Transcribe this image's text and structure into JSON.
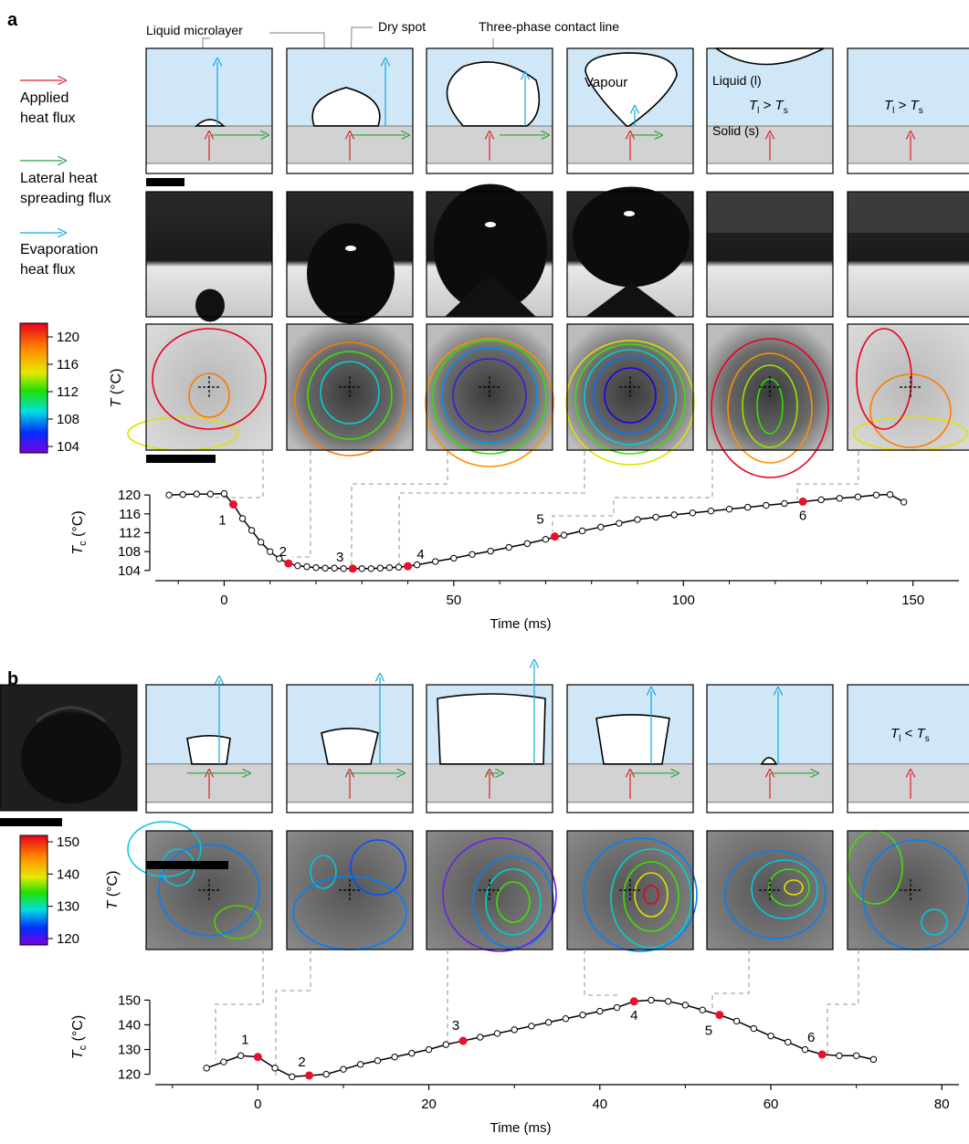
{
  "panel_a": {
    "label": "a",
    "annotations": {
      "microlayer": "Liquid microlayer",
      "dry_spot": "Dry spot",
      "contact_line": "Three-phase contact line"
    },
    "legend": {
      "applied": [
        "Applied",
        "heat flux"
      ],
      "lateral": [
        "Lateral heat",
        "spreading flux"
      ],
      "evaporation": [
        "Evaporation",
        "heat flux"
      ]
    },
    "schematic_text": {
      "vapour": "Vapour",
      "liquid": "Liquid (l)",
      "solid": "Solid (s)",
      "tl_gt_ts": "> ",
      "t_main": "T",
      "sub_l": "l",
      "sub_s": "s"
    },
    "colorbar": {
      "ticks": [
        "120",
        "116",
        "112",
        "108",
        "104"
      ],
      "axis_label_main": "T",
      "axis_label_unit": " (°C)"
    },
    "chart": {
      "ylabel_main": "T",
      "ylabel_sub": "c",
      "ylabel_unit": " (°C)",
      "xlabel": "Time (ms)",
      "xticks": [
        "0",
        "50",
        "100",
        "150"
      ],
      "yticks": [
        "120",
        "116",
        "112",
        "108",
        "104"
      ],
      "points": [
        "1",
        "2",
        "3",
        "4",
        "5",
        "6"
      ]
    }
  },
  "panel_b": {
    "label": "b",
    "schematic_text": {
      "tl_lt_ts": "< ",
      "t_main": "T",
      "sub_l": "l",
      "sub_s": "s"
    },
    "colorbar": {
      "ticks": [
        "150",
        "140",
        "130",
        "120"
      ],
      "axis_label_main": "T",
      "axis_label_unit": " (°C)"
    },
    "chart": {
      "ylabel_main": "T",
      "ylabel_sub": "c",
      "ylabel_unit": " (°C)",
      "xlabel": "Time (ms)",
      "xticks": [
        "0",
        "20",
        "40",
        "60",
        "80"
      ],
      "yticks": [
        "150",
        "140",
        "130",
        "120"
      ],
      "points": [
        "1",
        "2",
        "3",
        "4",
        "5",
        "6"
      ]
    }
  },
  "chart_data": [
    {
      "type": "line",
      "xlabel": "Time (ms)",
      "ylabel": "Tc (°C)",
      "xlim": [
        -15,
        160
      ],
      "ylim": [
        103,
        121
      ],
      "x": [
        -12,
        -9,
        -6,
        -3,
        0,
        2,
        4,
        6,
        8,
        10,
        12,
        14,
        16,
        18,
        20,
        22,
        24,
        26,
        28,
        30,
        32,
        34,
        36,
        38,
        40,
        42,
        46,
        50,
        54,
        58,
        62,
        66,
        70,
        74,
        78,
        82,
        86,
        90,
        94,
        98,
        102,
        106,
        110,
        114,
        118,
        122,
        126,
        130,
        134,
        138,
        142,
        145,
        148
      ],
      "y": [
        120,
        120.1,
        120.2,
        120.2,
        120.3,
        118,
        115,
        112.5,
        110,
        108,
        106.5,
        105.5,
        105,
        104.8,
        104.6,
        104.5,
        104.5,
        104.4,
        104.4,
        104.4,
        104.4,
        104.5,
        104.6,
        104.7,
        104.9,
        105.2,
        105.9,
        106.6,
        107.4,
        108.1,
        108.9,
        109.7,
        110.6,
        111.5,
        112.4,
        113.2,
        114,
        114.8,
        115.3,
        115.8,
        116.2,
        116.6,
        117,
        117.4,
        117.8,
        118.2,
        118.6,
        119,
        119.3,
        119.6,
        120,
        120.1,
        118.5
      ],
      "highlighted": [
        {
          "label": "1",
          "x": 2,
          "y": 118
        },
        {
          "label": "2",
          "x": 14,
          "y": 105.5
        },
        {
          "label": "3",
          "x": 28,
          "y": 104.4
        },
        {
          "label": "4",
          "x": 40,
          "y": 104.9
        },
        {
          "label": "5",
          "x": 72,
          "y": 111.2
        },
        {
          "label": "6",
          "x": 126,
          "y": 118.6
        }
      ]
    },
    {
      "type": "line",
      "xlabel": "Time (ms)",
      "ylabel": "Tc (°C)",
      "xlim": [
        -12,
        82
      ],
      "ylim": [
        118,
        152
      ],
      "x": [
        -6,
        -4,
        -2,
        0,
        2,
        4,
        6,
        8,
        10,
        12,
        14,
        16,
        18,
        20,
        22,
        24,
        26,
        28,
        30,
        32,
        34,
        36,
        38,
        40,
        42,
        44,
        46,
        48,
        50,
        52,
        54,
        56,
        58,
        60,
        62,
        64,
        66,
        68,
        70,
        72
      ],
      "y": [
        122.5,
        125,
        127.5,
        127,
        122.5,
        119,
        119.5,
        120,
        122,
        124,
        125.5,
        127,
        128.5,
        130,
        132,
        133.5,
        135,
        136.5,
        138,
        139.5,
        141,
        142.5,
        144,
        145.5,
        147,
        149.5,
        150,
        149.5,
        148,
        146,
        144,
        141.5,
        138.5,
        135.5,
        133,
        130,
        128,
        127.5,
        127.5,
        126
      ],
      "highlighted": [
        {
          "label": "1",
          "x": 0,
          "y": 127
        },
        {
          "label": "2",
          "x": 6,
          "y": 119.5
        },
        {
          "label": "3",
          "x": 24,
          "y": 133.5
        },
        {
          "label": "4",
          "x": 44,
          "y": 149.5
        },
        {
          "label": "5",
          "x": 54,
          "y": 144
        },
        {
          "label": "6",
          "x": 66,
          "y": 128
        }
      ]
    }
  ]
}
